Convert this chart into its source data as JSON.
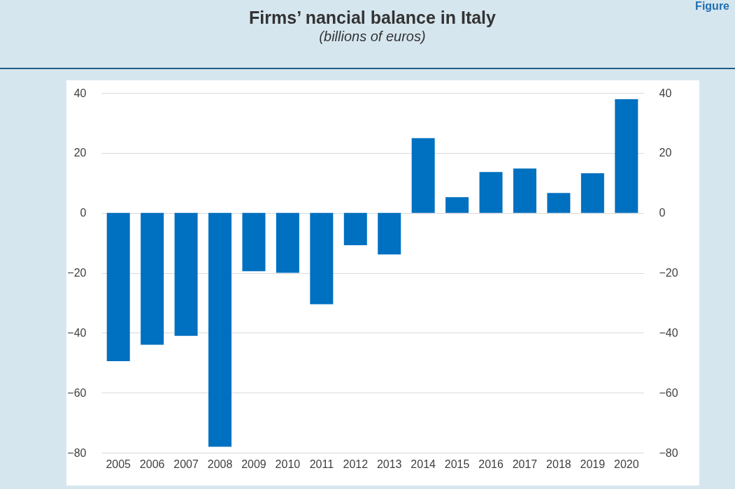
{
  "chart_data": {
    "type": "bar",
    "title": "Firms’ nancial balance in Italy",
    "subtitle": "(billions of euros)",
    "annotations": [
      "Figure"
    ],
    "categories": [
      "2005",
      "2006",
      "2007",
      "2008",
      "2009",
      "2010",
      "2011",
      "2012",
      "2013",
      "2014",
      "2015",
      "2016",
      "2017",
      "2018",
      "2019",
      "2020"
    ],
    "values": [
      -49.5,
      -44,
      -41,
      -78,
      -19.5,
      -20,
      -30.5,
      -10.8,
      -13.9,
      24.9,
      5.2,
      13.6,
      14.8,
      6.6,
      13.2,
      37.9
    ],
    "color": "#0070c0",
    "ylim": [
      -80,
      40
    ],
    "yticks": [
      -80,
      -60,
      -40,
      -20,
      0,
      20,
      40
    ],
    "y2lim": [
      -80,
      40
    ],
    "y2ticks": [
      -80,
      -60,
      -40,
      -20,
      0,
      20,
      40
    ],
    "grid": "y"
  }
}
